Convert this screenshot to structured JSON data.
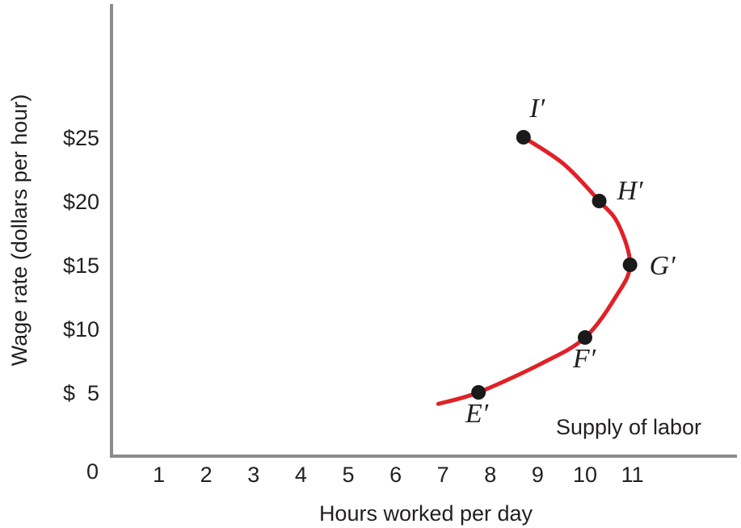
{
  "chart_data": {
    "type": "line",
    "title": "",
    "xlabel": "Hours worked per day",
    "ylabel": "Wage rate (dollars per hour)",
    "origin_label": "0",
    "xlim": [
      0,
      12.3
    ],
    "ylim": [
      0,
      33
    ],
    "x_ticks": [
      {
        "value": 1,
        "label": "1"
      },
      {
        "value": 2,
        "label": "2"
      },
      {
        "value": 3,
        "label": "3"
      },
      {
        "value": 4,
        "label": "4"
      },
      {
        "value": 5,
        "label": "5"
      },
      {
        "value": 6,
        "label": "6"
      },
      {
        "value": 7,
        "label": "7"
      },
      {
        "value": 8,
        "label": "8"
      },
      {
        "value": 9,
        "label": "9"
      },
      {
        "value": 10,
        "label": "10"
      },
      {
        "value": 11,
        "label": "11"
      }
    ],
    "y_ticks": [
      {
        "value": 5,
        "label": "$  5"
      },
      {
        "value": 10,
        "label": "$10"
      },
      {
        "value": 15,
        "label": "$15"
      },
      {
        "value": 20,
        "label": "$20"
      },
      {
        "value": 25,
        "label": "$25"
      }
    ],
    "grid": false,
    "series": [
      {
        "name": "Supply of labor",
        "color": "#e02127",
        "curve": [
          {
            "x": 6.9,
            "y": 4.1
          },
          {
            "x": 7.75,
            "y": 5.0
          },
          {
            "x": 9.1,
            "y": 7.3
          },
          {
            "x": 10.0,
            "y": 9.3
          },
          {
            "x": 10.65,
            "y": 12.5
          },
          {
            "x": 10.95,
            "y": 15.0
          },
          {
            "x": 10.7,
            "y": 18.2
          },
          {
            "x": 10.3,
            "y": 20.0
          },
          {
            "x": 9.55,
            "y": 22.9
          },
          {
            "x": 8.7,
            "y": 25.0
          }
        ],
        "points": [
          {
            "label": "E′",
            "x": 7.75,
            "y": 5.0
          },
          {
            "label": "F′",
            "x": 10.0,
            "y": 9.3
          },
          {
            "label": "G′",
            "x": 10.95,
            "y": 15.0
          },
          {
            "label": "H′",
            "x": 10.3,
            "y": 20.0
          },
          {
            "label": "I′",
            "x": 8.7,
            "y": 25.0
          }
        ]
      }
    ]
  }
}
